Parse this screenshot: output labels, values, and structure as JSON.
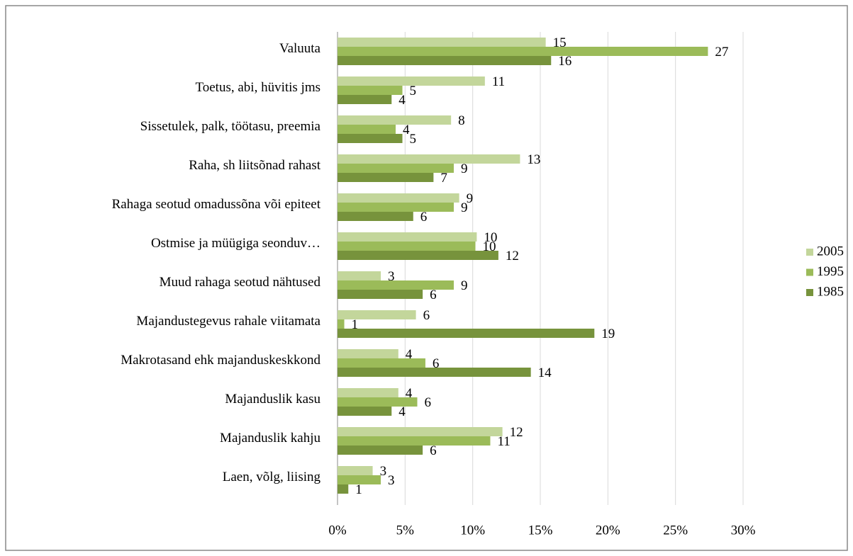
{
  "chart_data": {
    "type": "bar",
    "orientation": "horizontal",
    "categories": [
      "Valuuta",
      "Toetus, abi,  hüvitis jms",
      "Sissetulek, palk, töötasu, preemia",
      "Raha, sh liitsõnad rahast",
      "Rahaga seotud omadussõna või epiteet",
      "Ostmise ja müügiga seonduv…",
      "Muud rahaga seotud nähtused",
      "Majandustegevus rahale viitamata",
      "Makrotasand ehk majanduskeskkond",
      "Majanduslik kasu",
      "Majanduslik kahju",
      "Laen, võlg, liising"
    ],
    "series": [
      {
        "name": "2005",
        "color": "#c3d69b",
        "values": [
          15.4,
          10.9,
          8.4,
          13.5,
          9.0,
          10.3,
          3.2,
          5.8,
          4.5,
          4.5,
          12.2,
          2.6
        ],
        "value_labels": [
          "15",
          "11",
          "8",
          "13",
          "9",
          "10",
          "3",
          "6",
          "4",
          "4",
          "12",
          "3"
        ]
      },
      {
        "name": "1995",
        "color": "#9bbb59",
        "values": [
          27.4,
          4.8,
          4.3,
          8.6,
          8.6,
          10.2,
          8.6,
          0.5,
          6.5,
          5.9,
          11.3,
          3.2
        ],
        "value_labels": [
          "27",
          "5",
          "4",
          "9",
          "9",
          "10",
          "9",
          "1",
          "6",
          "6",
          "11",
          "3"
        ]
      },
      {
        "name": "1985",
        "color": "#77933c",
        "values": [
          15.8,
          4.0,
          4.8,
          7.1,
          5.6,
          11.9,
          6.3,
          19.0,
          14.3,
          4.0,
          6.3,
          0.8
        ],
        "value_labels": [
          "16",
          "4",
          "5",
          "7",
          "6",
          "12",
          "6",
          "19",
          "14",
          "4",
          "6",
          "1"
        ]
      }
    ],
    "xlim": [
      0,
      30
    ],
    "xticks": [
      {
        "value": 0,
        "label": "0%"
      },
      {
        "value": 5,
        "label": "5%"
      },
      {
        "value": 10,
        "label": "10%"
      },
      {
        "value": 15,
        "label": "15%"
      },
      {
        "value": 20,
        "label": "20%"
      },
      {
        "value": 25,
        "label": "25%"
      },
      {
        "value": 30,
        "label": "30%"
      }
    ],
    "grid": true,
    "legend": "right"
  }
}
